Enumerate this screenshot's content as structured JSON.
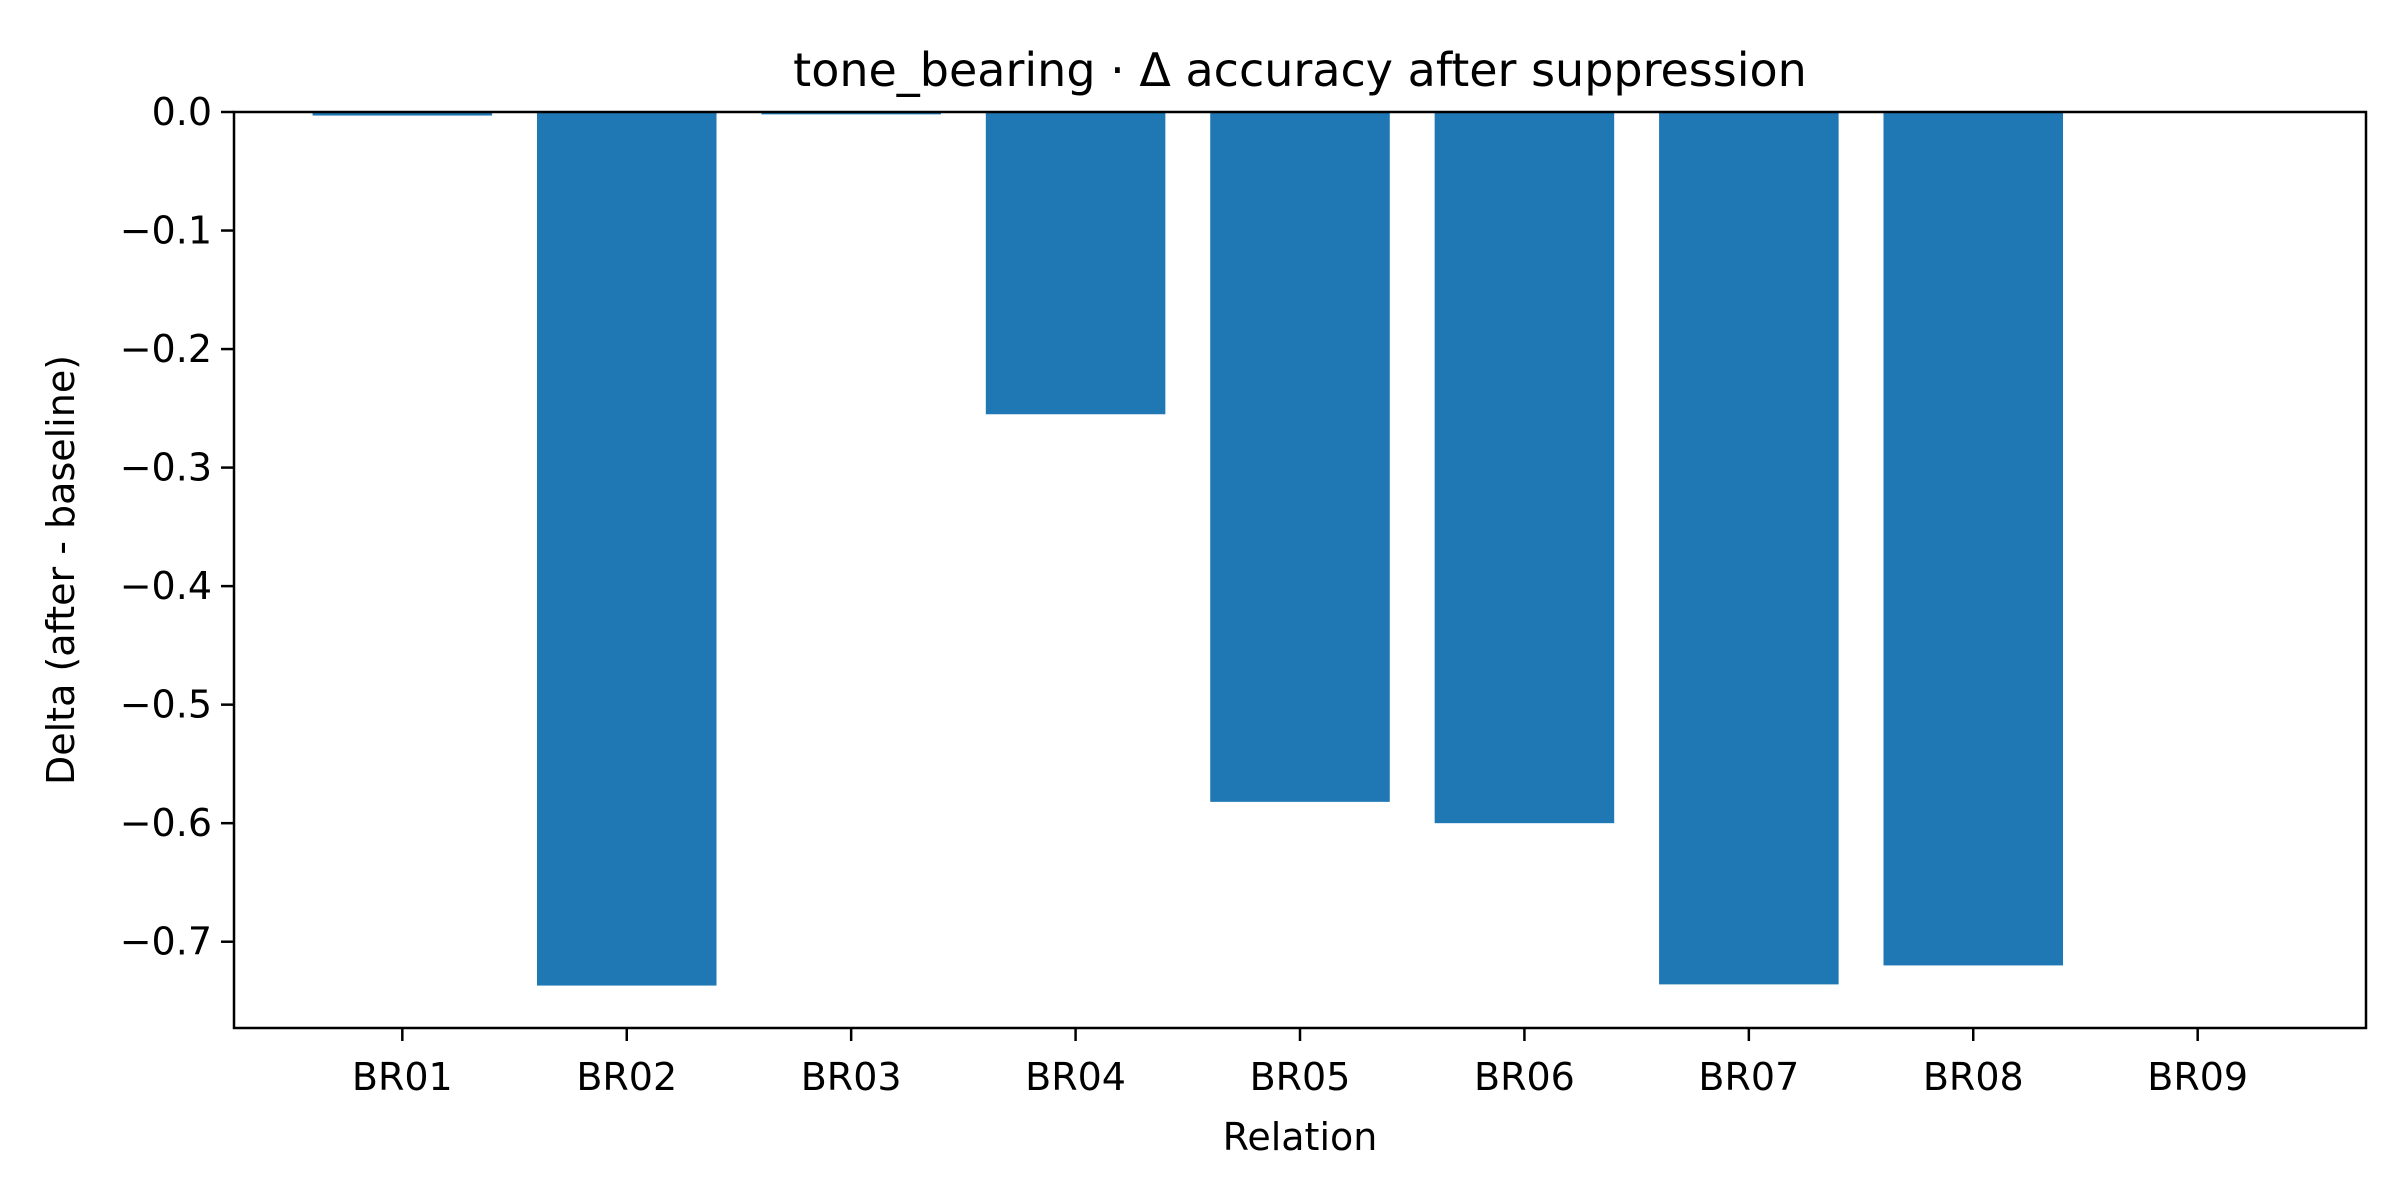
{
  "chart_data": {
    "type": "bar",
    "title": "tone_bearing · Δ accuracy after suppression",
    "xlabel": "Relation",
    "ylabel": "Delta (after - baseline)",
    "categories": [
      "BR01",
      "BR02",
      "BR03",
      "BR04",
      "BR05",
      "BR06",
      "BR07",
      "BR08",
      "BR09"
    ],
    "values": [
      -0.003,
      -0.737,
      -0.002,
      -0.255,
      -0.582,
      -0.6,
      -0.736,
      -0.72,
      0.0
    ],
    "yticks": [
      0.0,
      -0.1,
      -0.2,
      -0.3,
      -0.4,
      -0.5,
      -0.6,
      -0.7
    ],
    "ytick_labels": [
      "0.0",
      "−0.1",
      "−0.2",
      "−0.3",
      "−0.4",
      "−0.5",
      "−0.6",
      "−0.7"
    ],
    "ylim": [
      -0.7728,
      0.0
    ],
    "bar_color": "#1f77b4",
    "grid": false,
    "legend": "none"
  }
}
